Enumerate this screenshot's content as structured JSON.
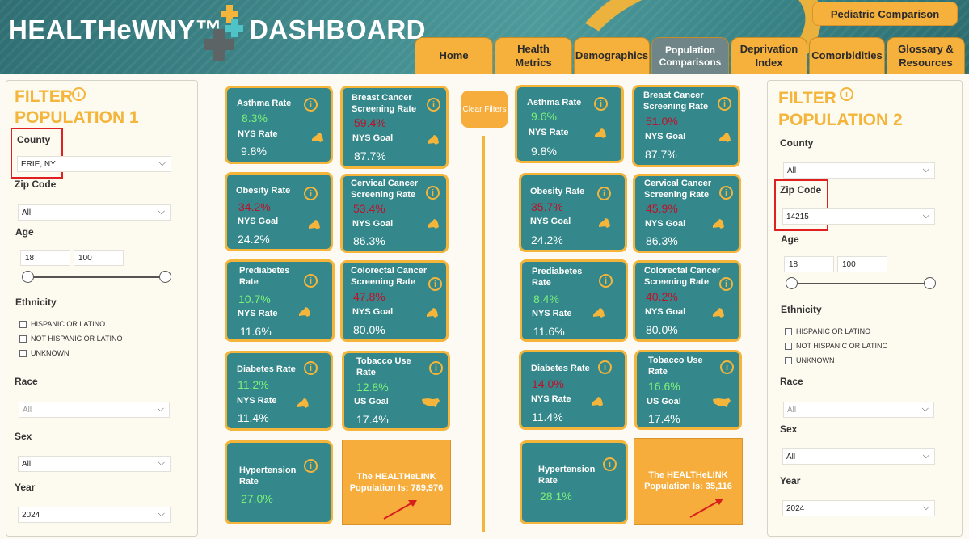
{
  "header": {
    "title_left": "HEALTHeWNY™",
    "title_right": "DASHBOARD",
    "pediatric_button": "Pediatric Comparison",
    "tabs": [
      {
        "label": "Home"
      },
      {
        "label": "Health Metrics"
      },
      {
        "label": "Demographics"
      },
      {
        "label": "Population Comparisons",
        "active": true
      },
      {
        "label": "Deprivation Index"
      },
      {
        "label": "Comorbidities"
      },
      {
        "label": "Glossary & Resources"
      }
    ]
  },
  "filter1": {
    "title_line1": "FILTER",
    "title_line2": "POPULATION 1",
    "county_label": "County",
    "county_value": "ERIE, NY",
    "zip_label": "Zip Code",
    "zip_value": "All",
    "age_label": "Age",
    "age_min": "18",
    "age_max": "100",
    "ethnicity_label": "Ethnicity",
    "ethnicity_options": [
      "HISPANIC OR LATINO",
      "NOT HISPANIC OR LATINO",
      "UNKNOWN"
    ],
    "race_label": "Race",
    "race_value": "All",
    "sex_label": "Sex",
    "sex_value": "All",
    "year_label": "Year",
    "year_value": "2024"
  },
  "filter2": {
    "title_line1": "FILTER",
    "title_line2": "POPULATION 2",
    "county_label": "County",
    "county_value": "All",
    "zip_label": "Zip Code",
    "zip_value": "14215",
    "age_label": "Age",
    "age_min": "18",
    "age_max": "100",
    "ethnicity_label": "Ethnicity",
    "ethnicity_options": [
      "HISPANIC OR LATINO",
      "NOT HISPANIC OR LATINO",
      "UNKNOWN"
    ],
    "race_label": "Race",
    "race_value": "All",
    "sex_label": "Sex",
    "sex_value": "All",
    "year_label": "Year",
    "year_value": "2024"
  },
  "clear_filters": "Clear Filters",
  "pop1": {
    "asthma": {
      "label": "Asthma Rate",
      "value": "8.3%",
      "goal_label": "NYS Rate",
      "goal_value": "9.8%"
    },
    "breast": {
      "label": "Breast Cancer Screening Rate",
      "value": "59.4%",
      "goal_label": "NYS Goal",
      "goal_value": "87.7%"
    },
    "obesity": {
      "label": "Obesity Rate",
      "value": "34.2%",
      "goal_label": "NYS Goal",
      "goal_value": "24.2%"
    },
    "cervical": {
      "label": "Cervical Cancer Screening Rate",
      "value": "53.4%",
      "goal_label": "NYS Goal",
      "goal_value": "86.3%"
    },
    "prediabetes": {
      "label": "Prediabetes Rate",
      "value": "10.7%",
      "goal_label": "NYS Rate",
      "goal_value": "11.6%"
    },
    "colorectal": {
      "label": "Colorectal Cancer Screening Rate",
      "value": "47.8%",
      "goal_label": "NYS Goal",
      "goal_value": "80.0%"
    },
    "diabetes": {
      "label": "Diabetes Rate",
      "value": "11.2%",
      "goal_label": "NYS Rate",
      "goal_value": "11.4%"
    },
    "tobacco": {
      "label": "Tobacco Use Rate",
      "value": "12.8%",
      "goal_label": "US Goal",
      "goal_value": "17.4%"
    },
    "hypertension": {
      "label": "Hypertension Rate",
      "value": "27.0%"
    },
    "population_text": "The HEALTHeLINK Population Is: 789,976"
  },
  "pop2": {
    "asthma": {
      "label": "Asthma Rate",
      "value": "9.6%",
      "goal_label": "NYS Rate",
      "goal_value": "9.8%"
    },
    "breast": {
      "label": "Breast Cancer Screening Rate",
      "value": "51.0%",
      "goal_label": "NYS Goal",
      "goal_value": "87.7%"
    },
    "obesity": {
      "label": "Obesity Rate",
      "value": "35.7%",
      "goal_label": "NYS Goal",
      "goal_value": "24.2%"
    },
    "cervical": {
      "label": "Cervical Cancer Screening Rate",
      "value": "45.9%",
      "goal_label": "NYS Goal",
      "goal_value": "86.3%"
    },
    "prediabetes": {
      "label": "Prediabetes Rate",
      "value": "8.4%",
      "goal_label": "NYS Rate",
      "goal_value": "11.6%"
    },
    "colorectal": {
      "label": "Colorectal Cancer Screening Rate",
      "value": "40.2%",
      "goal_label": "NYS Goal",
      "goal_value": "80.0%"
    },
    "diabetes": {
      "label": "Diabetes Rate",
      "value": "14.0%",
      "goal_label": "NYS Rate",
      "goal_value": "11.4%"
    },
    "tobacco": {
      "label": "Tobacco Use Rate",
      "value": "16.6%",
      "goal_label": "US Goal",
      "goal_value": "17.4%"
    },
    "hypertension": {
      "label": "Hypertension Rate",
      "value": "28.1%"
    },
    "population_text": "The HEALTHeLINK Population Is: 35,116"
  },
  "colors": {
    "accent": "#f4b53a",
    "teal": "#34888b",
    "good": "#7cf07a",
    "bad": "#c0102a"
  }
}
